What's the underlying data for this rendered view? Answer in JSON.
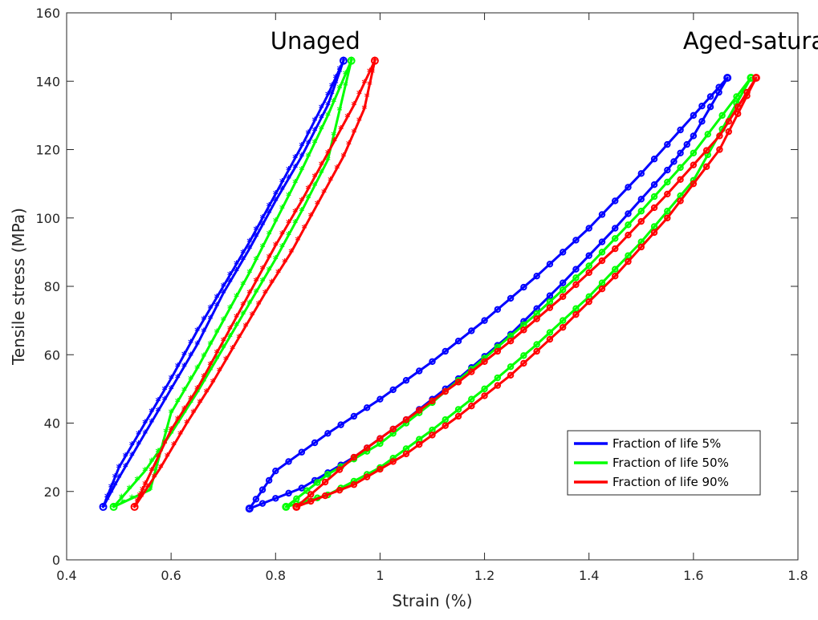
{
  "chart_data": {
    "type": "line",
    "xlabel": "Strain (%)",
    "ylabel": "Tensile stress (MPa)",
    "xlim": [
      0.4,
      1.8
    ],
    "ylim": [
      0,
      160
    ],
    "xticks": [
      "0.4",
      "0.6",
      "0.8",
      "1",
      "1.2",
      "1.4",
      "1.6",
      "1.8"
    ],
    "yticks": [
      "0",
      "20",
      "40",
      "60",
      "80",
      "100",
      "120",
      "140",
      "160"
    ],
    "grid": false,
    "legend_position": "bottom-right",
    "annotations": [
      "Unaged",
      "Aged-saturated"
    ],
    "series": [
      {
        "name": "Fraction of life 5%",
        "color": "#0000ff",
        "marker": "o",
        "unaged": {
          "loading": [
            [
              0.47,
              15.5
            ],
            [
              0.5,
              24
            ],
            [
              0.55,
              37
            ],
            [
              0.6,
              50
            ],
            [
              0.65,
              63
            ],
            [
              0.7,
              78
            ],
            [
              0.75,
              91
            ],
            [
              0.8,
              105
            ],
            [
              0.85,
              118
            ],
            [
              0.9,
              133
            ],
            [
              0.93,
              146
            ]
          ],
          "unloading": [
            [
              0.93,
              146
            ],
            [
              0.9,
              136
            ],
            [
              0.85,
              121
            ],
            [
              0.8,
              107
            ],
            [
              0.75,
              93
            ],
            [
              0.7,
              80
            ],
            [
              0.65,
              67
            ],
            [
              0.6,
              53
            ],
            [
              0.55,
              40
            ],
            [
              0.5,
              27
            ],
            [
              0.47,
              15.5
            ]
          ]
        },
        "aged": {
          "loading": [
            [
              0.75,
              15
            ],
            [
              0.85,
              21
            ],
            [
              0.95,
              30
            ],
            [
              1.05,
              41
            ],
            [
              1.15,
              53
            ],
            [
              1.25,
              66
            ],
            [
              1.35,
              81
            ],
            [
              1.45,
              97
            ],
            [
              1.55,
              114
            ],
            [
              1.6,
              124
            ],
            [
              1.665,
              141
            ]
          ],
          "unloading": [
            [
              1.665,
              141
            ],
            [
              1.6,
              130
            ],
            [
              1.5,
              113
            ],
            [
              1.4,
              97
            ],
            [
              1.3,
              83
            ],
            [
              1.2,
              70
            ],
            [
              1.1,
              58
            ],
            [
              1.0,
              47
            ],
            [
              0.9,
              37
            ],
            [
              0.8,
              26
            ],
            [
              0.75,
              15
            ]
          ]
        }
      },
      {
        "name": "Fraction of life 50%",
        "color": "#00ff00",
        "marker": "o",
        "unaged": {
          "loading": [
            [
              0.49,
              15.5
            ],
            [
              0.55,
              26
            ],
            [
              0.6,
              37
            ],
            [
              0.65,
              49
            ],
            [
              0.7,
              62
            ],
            [
              0.75,
              75
            ],
            [
              0.8,
              88
            ],
            [
              0.85,
              102
            ],
            [
              0.9,
              117
            ],
            [
              0.945,
              146
            ]
          ],
          "unloading": [
            [
              0.945,
              146
            ],
            [
              0.9,
              130
            ],
            [
              0.85,
              114
            ],
            [
              0.8,
              99
            ],
            [
              0.75,
              84
            ],
            [
              0.7,
              70
            ],
            [
              0.65,
              56
            ],
            [
              0.6,
              43
            ],
            [
              0.56,
              20.5
            ],
            [
              0.49,
              15.5
            ]
          ]
        },
        "aged": {
          "loading": [
            [
              0.82,
              15.5
            ],
            [
              0.9,
              19
            ],
            [
              1.0,
              27
            ],
            [
              1.1,
              38
            ],
            [
              1.2,
              50
            ],
            [
              1.3,
              63
            ],
            [
              1.4,
              77
            ],
            [
              1.5,
              93
            ],
            [
              1.6,
              111
            ],
            [
              1.71,
              141
            ]
          ],
          "unloading": [
            [
              1.71,
              141
            ],
            [
              1.6,
              119
            ],
            [
              1.5,
              102
            ],
            [
              1.4,
              86
            ],
            [
              1.3,
              72
            ],
            [
              1.2,
              59
            ],
            [
              1.1,
              46
            ],
            [
              1.0,
              34
            ],
            [
              0.9,
              25
            ],
            [
              0.82,
              15.5
            ]
          ]
        }
      },
      {
        "name": "Fraction of life 90%",
        "color": "#ff0000",
        "marker": "o",
        "unaged": {
          "loading": [
            [
              0.53,
              15.5
            ],
            [
              0.58,
              27
            ],
            [
              0.63,
              40
            ],
            [
              0.68,
              52
            ],
            [
              0.73,
              65
            ],
            [
              0.78,
              78
            ],
            [
              0.83,
              90
            ],
            [
              0.88,
              104
            ],
            [
              0.93,
              118
            ],
            [
              0.97,
              132
            ],
            [
              0.99,
              146
            ]
          ],
          "unloading": [
            [
              0.99,
              146
            ],
            [
              0.95,
              133
            ],
            [
              0.9,
              119
            ],
            [
              0.85,
              105
            ],
            [
              0.8,
              92
            ],
            [
              0.75,
              78
            ],
            [
              0.7,
              64
            ],
            [
              0.65,
              50
            ],
            [
              0.6,
              38
            ],
            [
              0.55,
              22
            ],
            [
              0.53,
              15.5
            ]
          ]
        },
        "aged": {
          "loading": [
            [
              0.84,
              15.5
            ],
            [
              0.95,
              22
            ],
            [
              1.05,
              31
            ],
            [
              1.15,
              42
            ],
            [
              1.25,
              54
            ],
            [
              1.35,
              68
            ],
            [
              1.45,
              83
            ],
            [
              1.55,
              100
            ],
            [
              1.65,
              120
            ],
            [
              1.72,
              141
            ]
          ],
          "unloading": [
            [
              1.72,
              141
            ],
            [
              1.65,
              124
            ],
            [
              1.55,
              107
            ],
            [
              1.45,
              91
            ],
            [
              1.35,
              77
            ],
            [
              1.25,
              64
            ],
            [
              1.15,
              52
            ],
            [
              1.05,
              41
            ],
            [
              0.95,
              30
            ],
            [
              0.84,
              15.5
            ]
          ]
        }
      }
    ]
  }
}
